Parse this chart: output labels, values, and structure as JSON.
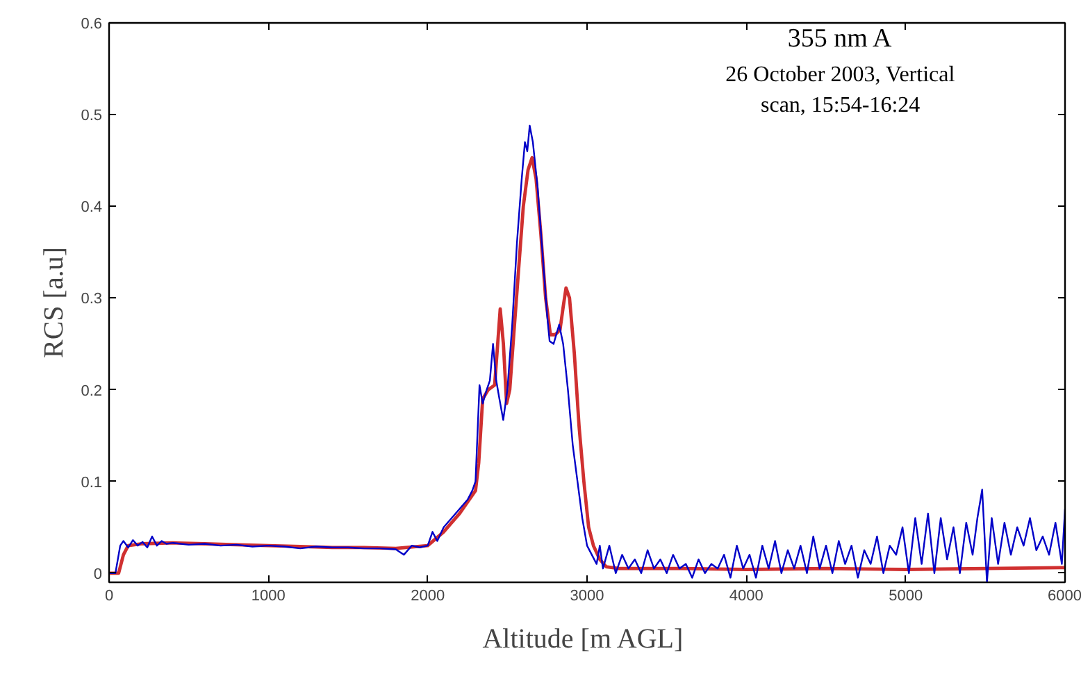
{
  "chart_data": {
    "type": "line",
    "title": "355 nm A",
    "subtitle": "26 October 2003, Vertical\nscan, 15:54-16:24",
    "xlabel": "Altitude  [m AGL]",
    "ylabel": "RCS [a.u]",
    "xlim": [
      0,
      6000
    ],
    "ylim": [
      -0.01,
      0.6
    ],
    "xticks": [
      0,
      1000,
      2000,
      3000,
      4000,
      5000,
      6000
    ],
    "yticks": [
      0,
      0.1,
      0.2,
      0.3,
      0.4,
      0.5,
      0.6
    ],
    "grid": false,
    "line_style": "solid",
    "marker": "none",
    "series": [
      {
        "color": "#0000c8",
        "x": [
          0,
          40,
          70,
          90,
          120,
          150,
          180,
          210,
          240,
          270,
          300,
          330,
          360,
          400,
          500,
          600,
          700,
          800,
          900,
          1000,
          1100,
          1200,
          1300,
          1400,
          1500,
          1600,
          1700,
          1800,
          1850,
          1900,
          1950,
          2000,
          2030,
          2060,
          2100,
          2150,
          2200,
          2250,
          2280,
          2300,
          2325,
          2345,
          2370,
          2390,
          2410,
          2430,
          2450,
          2474,
          2500,
          2530,
          2560,
          2590,
          2610,
          2625,
          2640,
          2660,
          2690,
          2720,
          2750,
          2765,
          2790,
          2825,
          2850,
          2880,
          2910,
          2940,
          2970,
          3000,
          3030,
          3060,
          3080,
          3100,
          3140,
          3180,
          3220,
          3260,
          3300,
          3340,
          3380,
          3420,
          3460,
          3500,
          3540,
          3580,
          3620,
          3660,
          3700,
          3740,
          3780,
          3820,
          3860,
          3900,
          3940,
          3980,
          4020,
          4060,
          4100,
          4140,
          4180,
          4220,
          4260,
          4300,
          4340,
          4380,
          4420,
          4460,
          4500,
          4540,
          4580,
          4620,
          4660,
          4700,
          4740,
          4780,
          4820,
          4860,
          4900,
          4940,
          4980,
          5020,
          5060,
          5100,
          5140,
          5180,
          5220,
          5260,
          5300,
          5340,
          5380,
          5420,
          5450,
          5480,
          5510,
          5540,
          5580,
          5620,
          5660,
          5700,
          5740,
          5780,
          5820,
          5860,
          5900,
          5940,
          5980,
          6000
        ],
        "values": [
          0,
          0,
          0.03,
          0.035,
          0.028,
          0.036,
          0.03,
          0.034,
          0.028,
          0.04,
          0.03,
          0.035,
          0.032,
          0.033,
          0.031,
          0.032,
          0.03,
          0.031,
          0.029,
          0.03,
          0.029,
          0.027,
          0.029,
          0.028,
          0.028,
          0.027,
          0.027,
          0.026,
          0.02,
          0.03,
          0.028,
          0.03,
          0.045,
          0.035,
          0.05,
          0.06,
          0.07,
          0.08,
          0.09,
          0.1,
          0.205,
          0.185,
          0.2,
          0.21,
          0.25,
          0.21,
          0.19,
          0.167,
          0.2,
          0.27,
          0.36,
          0.43,
          0.47,
          0.46,
          0.488,
          0.47,
          0.42,
          0.35,
          0.28,
          0.253,
          0.25,
          0.271,
          0.25,
          0.2,
          0.14,
          0.1,
          0.06,
          0.03,
          0.02,
          0.01,
          0.03,
          0.005,
          0.03,
          0.0,
          0.02,
          0.005,
          0.015,
          0.0,
          0.025,
          0.005,
          0.015,
          0.0,
          0.02,
          0.005,
          0.01,
          -0.005,
          0.015,
          0.0,
          0.01,
          0.005,
          0.02,
          -0.005,
          0.03,
          0.005,
          0.02,
          -0.005,
          0.03,
          0.005,
          0.035,
          0.0,
          0.025,
          0.005,
          0.03,
          0.0,
          0.04,
          0.005,
          0.03,
          0.0,
          0.035,
          0.01,
          0.03,
          -0.005,
          0.025,
          0.01,
          0.04,
          0.0,
          0.03,
          0.02,
          0.05,
          0.0,
          0.06,
          0.01,
          0.065,
          0.0,
          0.06,
          0.015,
          0.05,
          0.0,
          0.055,
          0.02,
          0.06,
          0.091,
          -0.01,
          0.06,
          0.01,
          0.055,
          0.02,
          0.05,
          0.03,
          0.06,
          0.025,
          0.04,
          0.02,
          0.055,
          0.01,
          0.07
        ]
      },
      {
        "color": "#d03030",
        "x": [
          0,
          60,
          90,
          120,
          200,
          400,
          600,
          800,
          1000,
          1200,
          1400,
          1600,
          1800,
          2000,
          2100,
          2200,
          2300,
          2320,
          2345,
          2380,
          2420,
          2435,
          2455,
          2475,
          2495,
          2515,
          2540,
          2570,
          2600,
          2630,
          2655,
          2680,
          2710,
          2740,
          2770,
          2800,
          2830,
          2850,
          2868,
          2890,
          2920,
          2950,
          2980,
          3010,
          3040,
          3080,
          3120,
          3200,
          3600,
          4000,
          4500,
          5000,
          5500,
          6000
        ],
        "values": [
          0,
          0,
          0.02,
          0.03,
          0.032,
          0.033,
          0.032,
          0.031,
          0.03,
          0.029,
          0.028,
          0.028,
          0.027,
          0.03,
          0.045,
          0.065,
          0.09,
          0.12,
          0.19,
          0.2,
          0.205,
          0.24,
          0.288,
          0.25,
          0.185,
          0.2,
          0.26,
          0.33,
          0.4,
          0.44,
          0.453,
          0.43,
          0.37,
          0.3,
          0.26,
          0.26,
          0.265,
          0.29,
          0.311,
          0.3,
          0.24,
          0.16,
          0.1,
          0.05,
          0.03,
          0.015,
          0.007,
          0.005,
          0.005,
          0.004,
          0.005,
          0.004,
          0.005,
          0.006
        ]
      }
    ]
  }
}
